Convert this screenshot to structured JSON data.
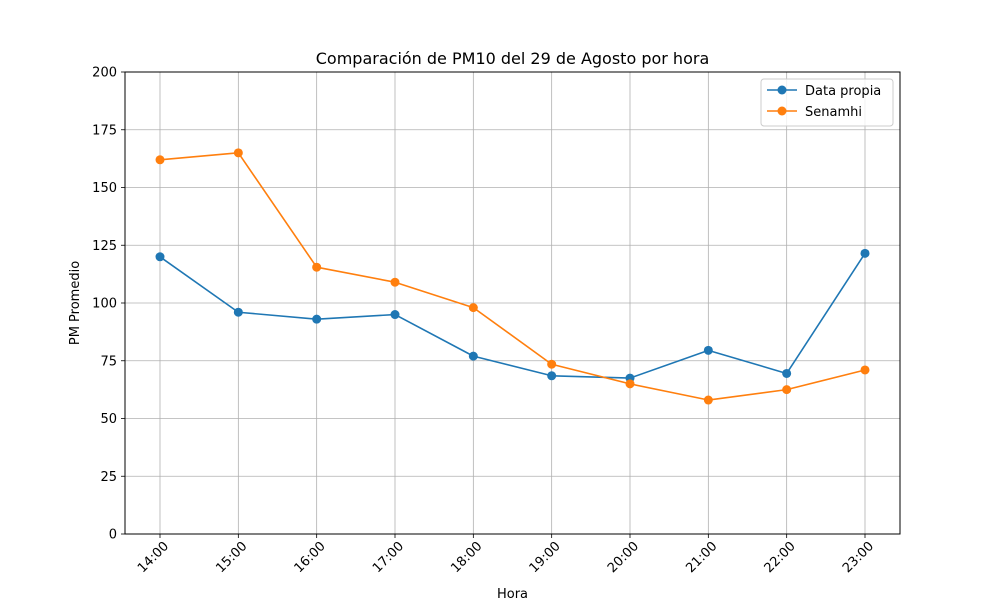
{
  "chart_data": {
    "type": "line",
    "title": "Comparación de PM10 del 29 de Agosto por hora",
    "xlabel": "Hora",
    "ylabel": "PM Promedio",
    "categories": [
      "14:00",
      "15:00",
      "16:00",
      "17:00",
      "18:00",
      "19:00",
      "20:00",
      "21:00",
      "22:00",
      "23:00"
    ],
    "ylim": [
      0,
      200
    ],
    "yticks": [
      0,
      25,
      50,
      75,
      100,
      125,
      150,
      175,
      200
    ],
    "grid": true,
    "legend_position": "top-right",
    "series": [
      {
        "name": "Data propia",
        "color": "#1f77b4",
        "marker": "circle",
        "values": [
          120,
          96,
          93,
          95,
          77,
          68.5,
          67.5,
          79.5,
          69.5,
          121.5
        ]
      },
      {
        "name": "Senamhi",
        "color": "#ff7f0e",
        "marker": "circle",
        "values": [
          162,
          165,
          115.5,
          109,
          98,
          73.5,
          65,
          58,
          62.5,
          71
        ]
      }
    ]
  }
}
